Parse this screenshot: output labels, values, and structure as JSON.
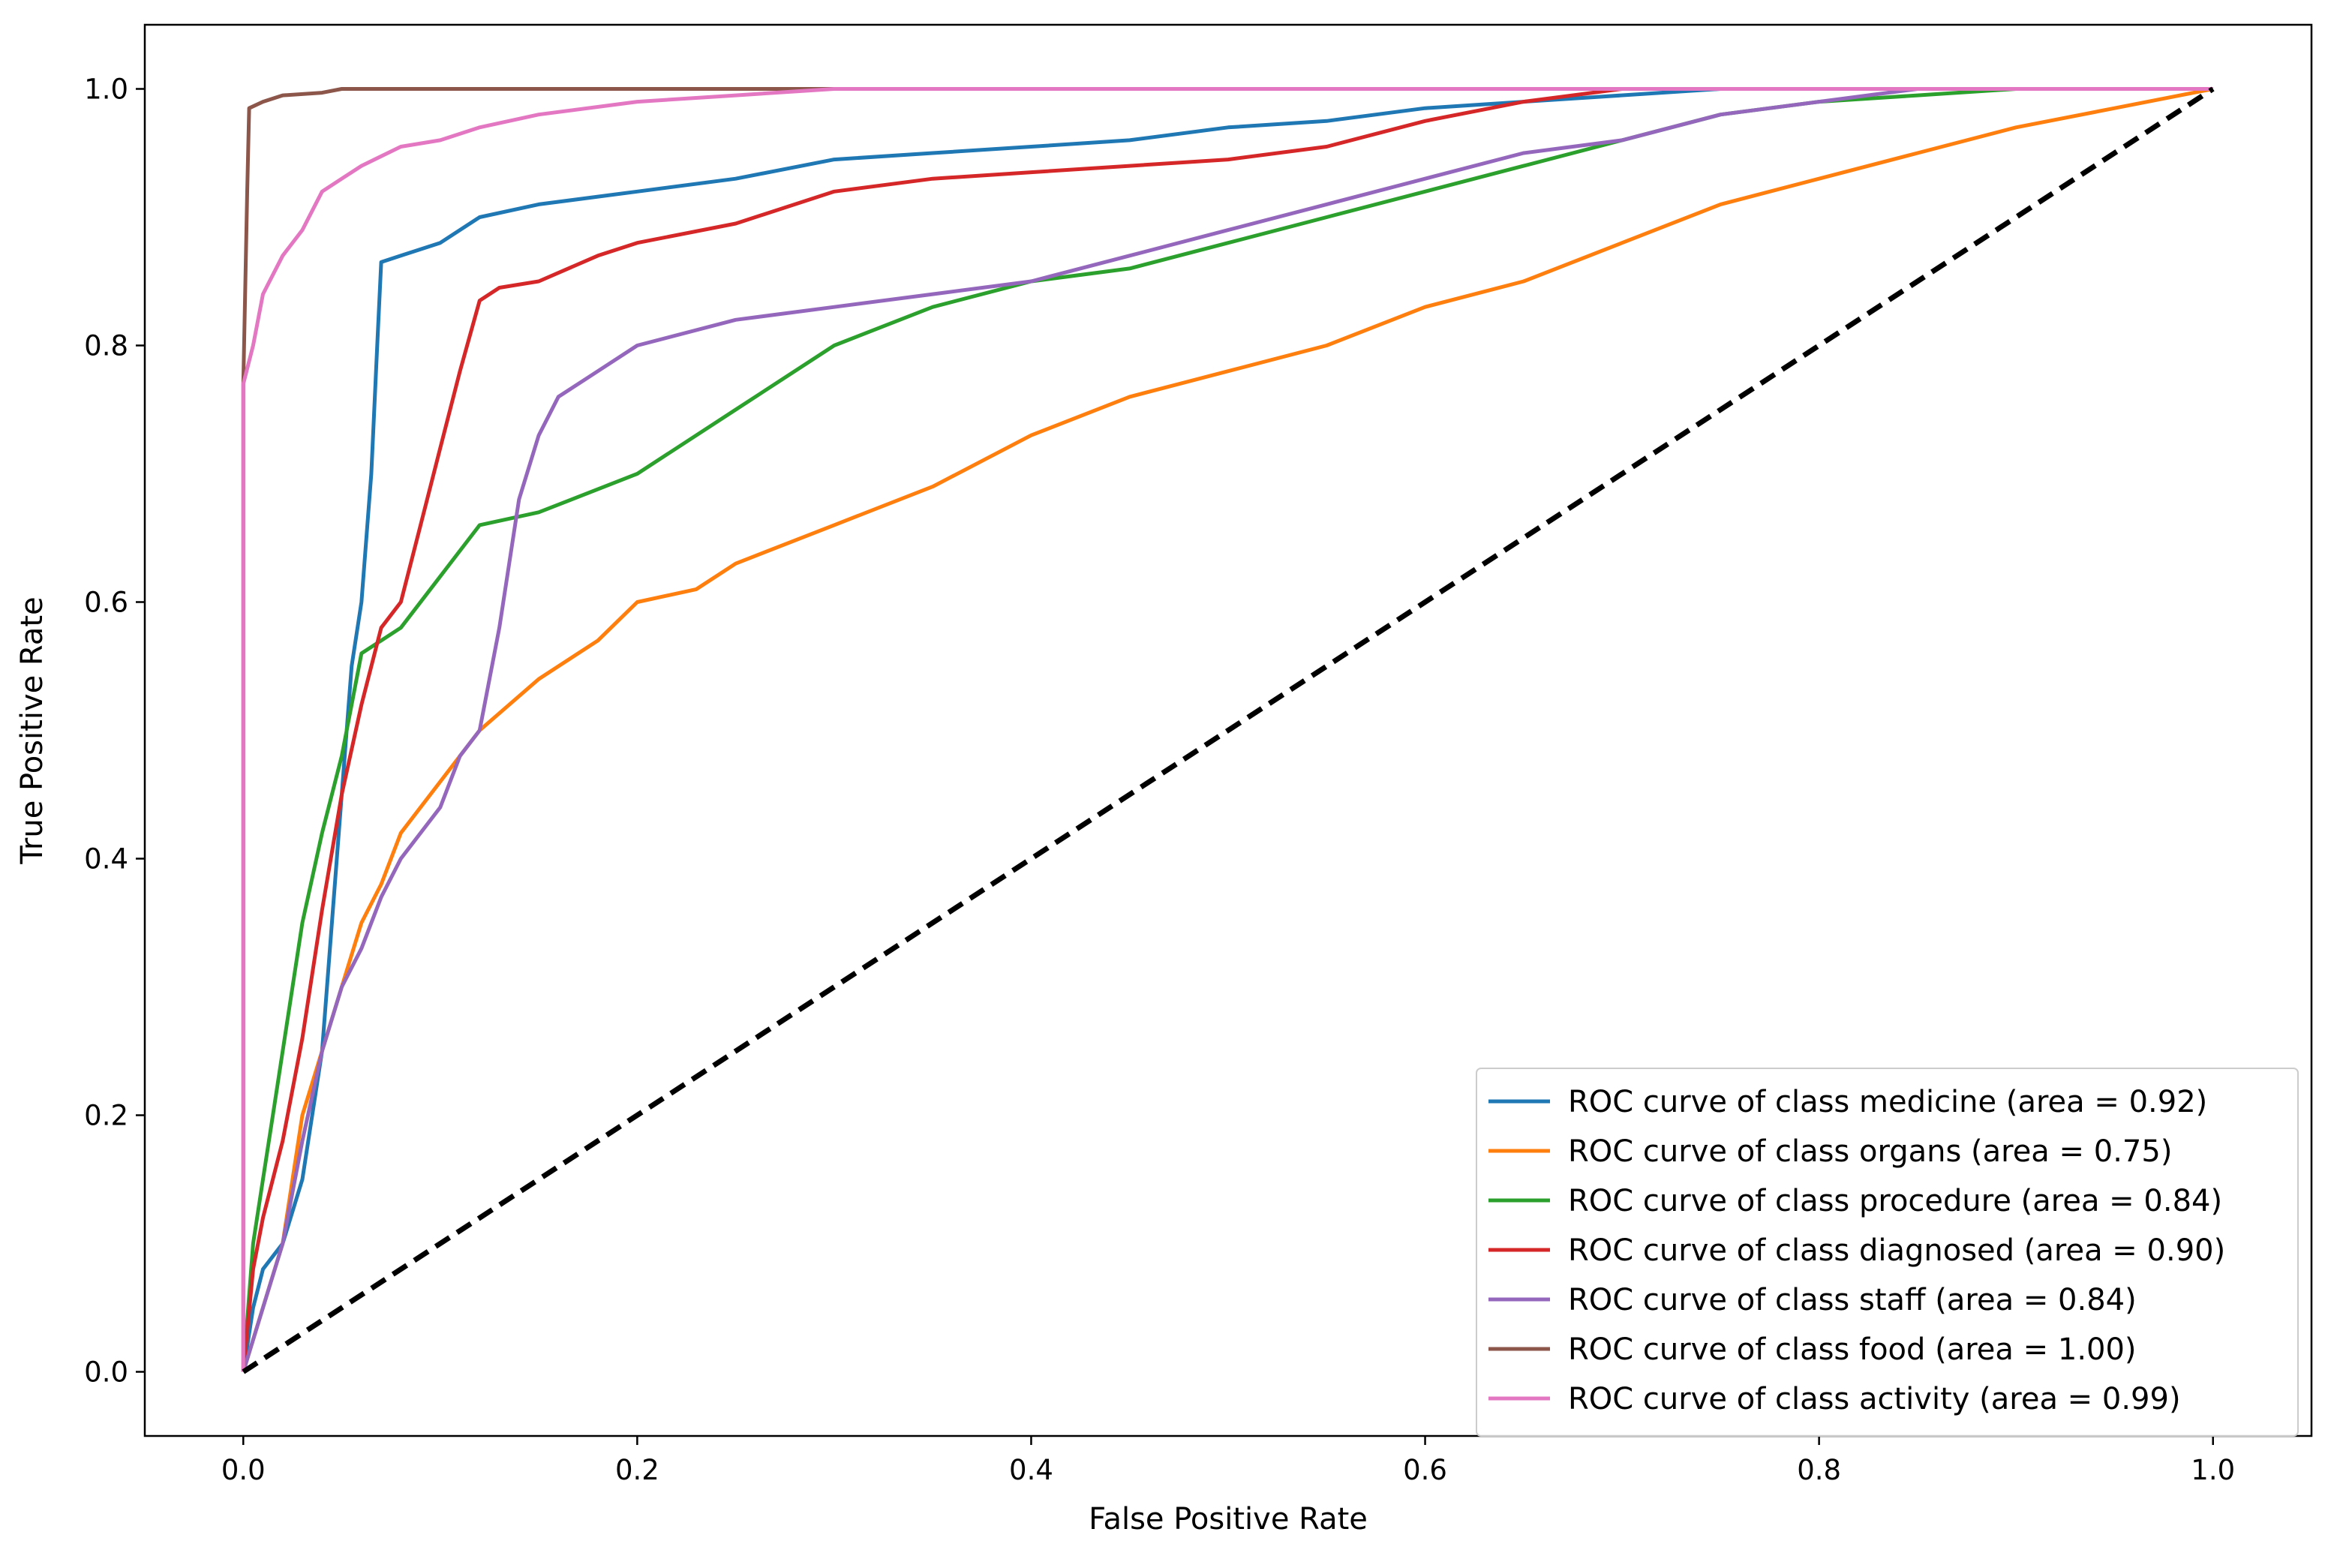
{
  "chart_data": {
    "type": "line",
    "title": "",
    "xlabel": "False Positive Rate",
    "ylabel": "True Positive Rate",
    "xlim": [
      -0.05,
      1.05
    ],
    "ylim": [
      -0.05,
      1.05
    ],
    "xticks": [
      "0.0",
      "0.2",
      "0.4",
      "0.6",
      "0.8",
      "1.0"
    ],
    "yticks": [
      "0.0",
      "0.2",
      "0.4",
      "0.6",
      "0.8",
      "1.0"
    ],
    "grid": false,
    "legend_position": "lower right",
    "series": [
      {
        "name": "ROC curve of class medicine (area = 0.92)",
        "color": "#1f77b4",
        "points": [
          [
            0,
            0
          ],
          [
            0.005,
            0.05
          ],
          [
            0.01,
            0.08
          ],
          [
            0.02,
            0.1
          ],
          [
            0.03,
            0.15
          ],
          [
            0.04,
            0.25
          ],
          [
            0.045,
            0.35
          ],
          [
            0.05,
            0.45
          ],
          [
            0.055,
            0.55
          ],
          [
            0.06,
            0.6
          ],
          [
            0.065,
            0.7
          ],
          [
            0.068,
            0.8
          ],
          [
            0.07,
            0.865
          ],
          [
            0.08,
            0.87
          ],
          [
            0.1,
            0.88
          ],
          [
            0.12,
            0.9
          ],
          [
            0.15,
            0.91
          ],
          [
            0.2,
            0.92
          ],
          [
            0.25,
            0.93
          ],
          [
            0.3,
            0.945
          ],
          [
            0.35,
            0.95
          ],
          [
            0.4,
            0.955
          ],
          [
            0.45,
            0.96
          ],
          [
            0.5,
            0.97
          ],
          [
            0.55,
            0.975
          ],
          [
            0.6,
            0.985
          ],
          [
            0.65,
            0.99
          ],
          [
            0.75,
            1.0
          ],
          [
            1.0,
            1.0
          ]
        ]
      },
      {
        "name": "ROC curve of class organs (area = 0.75)",
        "color": "#ff7f0e",
        "points": [
          [
            0,
            0
          ],
          [
            0.01,
            0.05
          ],
          [
            0.02,
            0.1
          ],
          [
            0.03,
            0.2
          ],
          [
            0.04,
            0.25
          ],
          [
            0.05,
            0.3
          ],
          [
            0.06,
            0.35
          ],
          [
            0.07,
            0.38
          ],
          [
            0.08,
            0.42
          ],
          [
            0.1,
            0.46
          ],
          [
            0.12,
            0.5
          ],
          [
            0.15,
            0.54
          ],
          [
            0.18,
            0.57
          ],
          [
            0.2,
            0.6
          ],
          [
            0.23,
            0.61
          ],
          [
            0.25,
            0.63
          ],
          [
            0.3,
            0.66
          ],
          [
            0.35,
            0.69
          ],
          [
            0.4,
            0.73
          ],
          [
            0.45,
            0.76
          ],
          [
            0.5,
            0.78
          ],
          [
            0.55,
            0.8
          ],
          [
            0.6,
            0.83
          ],
          [
            0.65,
            0.85
          ],
          [
            0.7,
            0.88
          ],
          [
            0.75,
            0.91
          ],
          [
            0.8,
            0.93
          ],
          [
            0.85,
            0.95
          ],
          [
            0.9,
            0.97
          ],
          [
            0.95,
            0.985
          ],
          [
            1.0,
            1.0
          ]
        ]
      },
      {
        "name": "ROC curve of class procedure (area = 0.84)",
        "color": "#2ca02c",
        "points": [
          [
            0,
            0
          ],
          [
            0.005,
            0.1
          ],
          [
            0.01,
            0.15
          ],
          [
            0.015,
            0.2
          ],
          [
            0.02,
            0.25
          ],
          [
            0.03,
            0.35
          ],
          [
            0.04,
            0.42
          ],
          [
            0.05,
            0.48
          ],
          [
            0.055,
            0.52
          ],
          [
            0.06,
            0.56
          ],
          [
            0.08,
            0.58
          ],
          [
            0.1,
            0.62
          ],
          [
            0.12,
            0.66
          ],
          [
            0.15,
            0.67
          ],
          [
            0.2,
            0.7
          ],
          [
            0.25,
            0.75
          ],
          [
            0.3,
            0.8
          ],
          [
            0.35,
            0.83
          ],
          [
            0.4,
            0.85
          ],
          [
            0.45,
            0.86
          ],
          [
            0.5,
            0.88
          ],
          [
            0.55,
            0.9
          ],
          [
            0.6,
            0.92
          ],
          [
            0.65,
            0.94
          ],
          [
            0.7,
            0.96
          ],
          [
            0.75,
            0.98
          ],
          [
            0.8,
            0.99
          ],
          [
            0.85,
            0.995
          ],
          [
            0.9,
            1.0
          ],
          [
            1.0,
            1.0
          ]
        ]
      },
      {
        "name": "ROC curve of class diagnosed (area = 0.90)",
        "color": "#d62728",
        "points": [
          [
            0,
            0
          ],
          [
            0.005,
            0.08
          ],
          [
            0.01,
            0.12
          ],
          [
            0.02,
            0.18
          ],
          [
            0.03,
            0.26
          ],
          [
            0.04,
            0.36
          ],
          [
            0.05,
            0.45
          ],
          [
            0.06,
            0.52
          ],
          [
            0.07,
            0.58
          ],
          [
            0.08,
            0.6
          ],
          [
            0.09,
            0.66
          ],
          [
            0.1,
            0.72
          ],
          [
            0.11,
            0.78
          ],
          [
            0.12,
            0.835
          ],
          [
            0.13,
            0.845
          ],
          [
            0.15,
            0.85
          ],
          [
            0.18,
            0.87
          ],
          [
            0.2,
            0.88
          ],
          [
            0.25,
            0.895
          ],
          [
            0.3,
            0.92
          ],
          [
            0.35,
            0.93
          ],
          [
            0.4,
            0.935
          ],
          [
            0.45,
            0.94
          ],
          [
            0.5,
            0.945
          ],
          [
            0.55,
            0.955
          ],
          [
            0.6,
            0.975
          ],
          [
            0.65,
            0.99
          ],
          [
            0.7,
            1.0
          ],
          [
            1.0,
            1.0
          ]
        ]
      },
      {
        "name": "ROC curve of class staff (area = 0.84)",
        "color": "#9467bd",
        "points": [
          [
            0,
            0
          ],
          [
            0.01,
            0.05
          ],
          [
            0.02,
            0.1
          ],
          [
            0.03,
            0.18
          ],
          [
            0.04,
            0.25
          ],
          [
            0.05,
            0.3
          ],
          [
            0.06,
            0.33
          ],
          [
            0.07,
            0.37
          ],
          [
            0.08,
            0.4
          ],
          [
            0.1,
            0.44
          ],
          [
            0.11,
            0.48
          ],
          [
            0.12,
            0.5
          ],
          [
            0.13,
            0.58
          ],
          [
            0.14,
            0.68
          ],
          [
            0.15,
            0.73
          ],
          [
            0.16,
            0.76
          ],
          [
            0.18,
            0.78
          ],
          [
            0.2,
            0.8
          ],
          [
            0.25,
            0.82
          ],
          [
            0.3,
            0.83
          ],
          [
            0.35,
            0.84
          ],
          [
            0.4,
            0.85
          ],
          [
            0.45,
            0.87
          ],
          [
            0.5,
            0.89
          ],
          [
            0.55,
            0.91
          ],
          [
            0.6,
            0.93
          ],
          [
            0.65,
            0.95
          ],
          [
            0.7,
            0.96
          ],
          [
            0.75,
            0.98
          ],
          [
            0.8,
            0.99
          ],
          [
            0.85,
            1.0
          ],
          [
            1.0,
            1.0
          ]
        ]
      },
      {
        "name": "ROC curve of class food (area = 1.00)",
        "color": "#8c564b",
        "points": [
          [
            0,
            0
          ],
          [
            0,
            0.77
          ],
          [
            0.002,
            0.92
          ],
          [
            0.003,
            0.985
          ],
          [
            0.01,
            0.99
          ],
          [
            0.02,
            0.995
          ],
          [
            0.04,
            0.997
          ],
          [
            0.05,
            1.0
          ],
          [
            1.0,
            1.0
          ]
        ]
      },
      {
        "name": "ROC curve of class activity (area = 0.99)",
        "color": "#e377c2",
        "points": [
          [
            0,
            0
          ],
          [
            0,
            0.77
          ],
          [
            0.005,
            0.8
          ],
          [
            0.01,
            0.84
          ],
          [
            0.02,
            0.87
          ],
          [
            0.03,
            0.89
          ],
          [
            0.04,
            0.92
          ],
          [
            0.05,
            0.93
          ],
          [
            0.06,
            0.94
          ],
          [
            0.08,
            0.955
          ],
          [
            0.1,
            0.96
          ],
          [
            0.12,
            0.97
          ],
          [
            0.15,
            0.98
          ],
          [
            0.2,
            0.99
          ],
          [
            0.25,
            0.995
          ],
          [
            0.3,
            1.0
          ],
          [
            1.0,
            1.0
          ]
        ]
      },
      {
        "name": "",
        "color": "#000000",
        "dashed": true,
        "points": [
          [
            0,
            0
          ],
          [
            1,
            1
          ]
        ]
      }
    ]
  }
}
